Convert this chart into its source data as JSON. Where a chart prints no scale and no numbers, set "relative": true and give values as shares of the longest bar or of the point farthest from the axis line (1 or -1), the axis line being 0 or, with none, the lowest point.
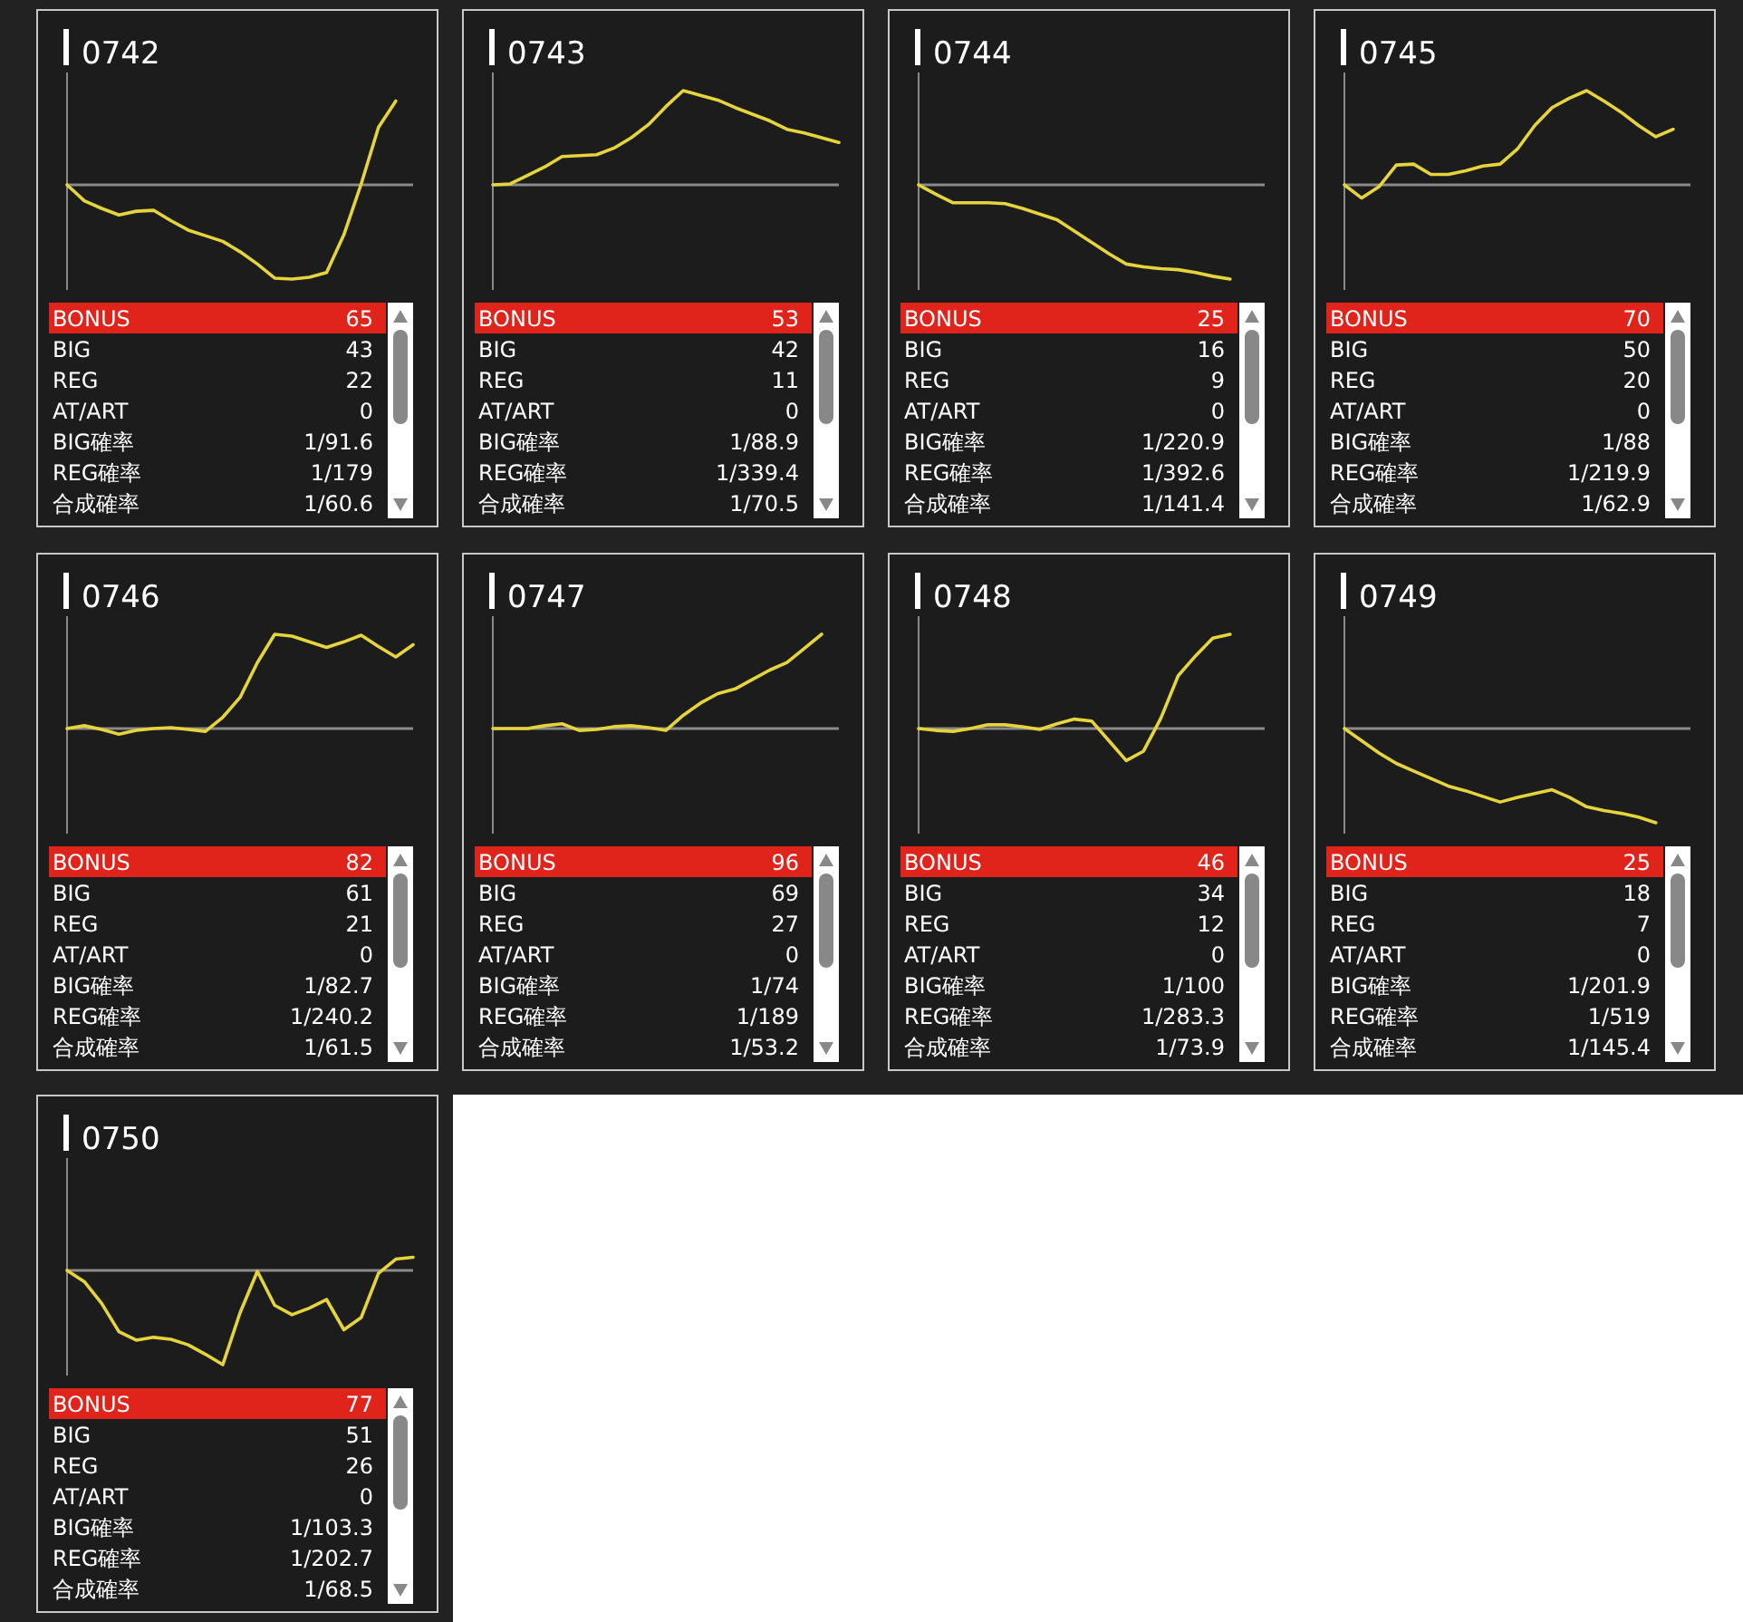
{
  "chart_data": [
    {
      "type": "line",
      "title": "0742",
      "relative": true,
      "color": "#e6d43c",
      "categories": [
        null,
        null,
        null,
        null,
        null,
        null,
        null,
        null,
        null,
        null,
        null,
        null,
        null,
        null,
        null,
        null,
        null,
        null,
        null,
        null,
        null
      ],
      "values": [
        0,
        -0.17,
        -0.25,
        -0.32,
        -0.28,
        -0.27,
        -0.38,
        -0.48,
        -0.54,
        -0.6,
        -0.71,
        -0.84,
        -0.99,
        -1,
        -0.98,
        -0.93,
        -0.53,
        0.01,
        0.61,
        0.89,
        null
      ],
      "annotations": [
        "BONUS",
        "65",
        "BIG",
        "43",
        "REG",
        "22",
        "AT/ART",
        "0",
        "BIG確率",
        "1/91.6",
        "REG確率",
        "1/179",
        "合成確率",
        "1/60.6"
      ]
    },
    {
      "type": "line",
      "title": "0743",
      "relative": true,
      "color": "#e6d43c",
      "categories": [
        null,
        null,
        null,
        null,
        null,
        null,
        null,
        null,
        null,
        null,
        null,
        null,
        null,
        null,
        null,
        null,
        null,
        null,
        null,
        null,
        null
      ],
      "values": [
        0,
        0.01,
        0.1,
        0.19,
        0.3,
        0.31,
        0.32,
        0.39,
        0.5,
        0.64,
        0.83,
        1,
        0.95,
        0.9,
        0.82,
        0.75,
        0.68,
        0.59,
        0.55,
        0.5,
        0.45
      ],
      "annotations": [
        "BONUS",
        "53",
        "BIG",
        "42",
        "REG",
        "11",
        "AT/ART",
        "0",
        "BIG確率",
        "1/88.9",
        "REG確率",
        "1/339.4",
        "合成確率",
        "1/70.5"
      ]
    },
    {
      "type": "line",
      "title": "0744",
      "relative": true,
      "color": "#e6d43c",
      "categories": [
        null,
        null,
        null,
        null,
        null,
        null,
        null,
        null,
        null,
        null,
        null,
        null,
        null,
        null,
        null,
        null,
        null,
        null,
        null,
        null,
        null
      ],
      "values": [
        0,
        -0.1,
        -0.19,
        -0.19,
        -0.19,
        -0.2,
        -0.25,
        -0.31,
        -0.37,
        -0.49,
        -0.61,
        -0.73,
        -0.84,
        -0.87,
        -0.89,
        -0.9,
        -0.93,
        -0.97,
        -1,
        null,
        null
      ],
      "annotations": [
        "BONUS",
        "25",
        "BIG",
        "16",
        "REG",
        "9",
        "AT/ART",
        "0",
        "BIG確率",
        "1/220.9",
        "REG確率",
        "1/392.6",
        "合成確率",
        "1/141.4"
      ]
    },
    {
      "type": "line",
      "title": "0745",
      "relative": true,
      "color": "#e6d43c",
      "categories": [
        null,
        null,
        null,
        null,
        null,
        null,
        null,
        null,
        null,
        null,
        null,
        null,
        null,
        null,
        null,
        null,
        null,
        null,
        null,
        null,
        null
      ],
      "values": [
        0,
        -0.14,
        -0.02,
        0.21,
        0.22,
        0.11,
        0.11,
        0.15,
        0.2,
        0.22,
        0.38,
        0.63,
        0.82,
        0.92,
        1,
        0.89,
        0.77,
        0.63,
        0.51,
        0.59,
        null
      ],
      "annotations": [
        "BONUS",
        "70",
        "BIG",
        "50",
        "REG",
        "20",
        "AT/ART",
        "0",
        "BIG確率",
        "1/88",
        "REG確率",
        "1/219.9",
        "合成確率",
        "1/62.9"
      ]
    },
    {
      "type": "line",
      "title": "0746",
      "relative": true,
      "color": "#e6d43c",
      "categories": [
        null,
        null,
        null,
        null,
        null,
        null,
        null,
        null,
        null,
        null,
        null,
        null,
        null,
        null,
        null,
        null,
        null,
        null,
        null,
        null,
        null
      ],
      "values": [
        0,
        0.03,
        -0.01,
        -0.06,
        -0.02,
        0,
        0.01,
        -0.01,
        -0.03,
        0.12,
        0.33,
        0.7,
        1,
        0.98,
        0.92,
        0.86,
        0.92,
        0.99,
        0.87,
        0.76,
        0.89
      ],
      "annotations": [
        "BONUS",
        "82",
        "BIG",
        "61",
        "REG",
        "21",
        "AT/ART",
        "0",
        "BIG確率",
        "1/82.7",
        "REG確率",
        "1/240.2",
        "合成確率",
        "1/61.5"
      ]
    },
    {
      "type": "line",
      "title": "0747",
      "relative": true,
      "color": "#e6d43c",
      "categories": [
        null,
        null,
        null,
        null,
        null,
        null,
        null,
        null,
        null,
        null,
        null,
        null,
        null,
        null,
        null,
        null,
        null,
        null,
        null,
        null,
        null
      ],
      "values": [
        0,
        0,
        0,
        0.03,
        0.05,
        -0.02,
        -0.01,
        0.02,
        0.03,
        0.01,
        -0.02,
        0.14,
        0.27,
        0.37,
        0.42,
        0.52,
        0.62,
        0.7,
        0.85,
        1,
        null
      ],
      "annotations": [
        "BONUS",
        "96",
        "BIG",
        "69",
        "REG",
        "27",
        "AT/ART",
        "0",
        "BIG確率",
        "1/74",
        "REG確率",
        "1/189",
        "合成確率",
        "1/53.2"
      ]
    },
    {
      "type": "line",
      "title": "0748",
      "relative": true,
      "color": "#e6d43c",
      "categories": [
        null,
        null,
        null,
        null,
        null,
        null,
        null,
        null,
        null,
        null,
        null,
        null,
        null,
        null,
        null,
        null,
        null,
        null,
        null,
        null,
        null
      ],
      "values": [
        0,
        -0.02,
        -0.03,
        0,
        0.04,
        0.04,
        0.02,
        -0.01,
        0.05,
        0.1,
        0.08,
        -0.13,
        -0.34,
        -0.24,
        0.11,
        0.56,
        0.77,
        0.96,
        1,
        null,
        null
      ],
      "annotations": [
        "BONUS",
        "46",
        "BIG",
        "34",
        "REG",
        "12",
        "AT/ART",
        "0",
        "BIG確率",
        "1/100",
        "REG確率",
        "1/283.3",
        "合成確率",
        "1/73.9"
      ]
    },
    {
      "type": "line",
      "title": "0749",
      "relative": true,
      "color": "#e6d43c",
      "categories": [
        null,
        null,
        null,
        null,
        null,
        null,
        null,
        null,
        null,
        null,
        null,
        null,
        null,
        null,
        null,
        null,
        null,
        null,
        null,
        null,
        null
      ],
      "values": [
        0,
        -0.13,
        -0.26,
        -0.37,
        -0.45,
        -0.53,
        -0.61,
        -0.66,
        -0.72,
        -0.78,
        -0.73,
        -0.69,
        -0.65,
        -0.73,
        -0.83,
        -0.87,
        -0.9,
        -0.94,
        -1,
        null,
        null
      ],
      "annotations": [
        "BONUS",
        "25",
        "BIG",
        "18",
        "REG",
        "7",
        "AT/ART",
        "0",
        "BIG確率",
        "1/201.9",
        "REG確率",
        "1/519",
        "合成確率",
        "1/145.4"
      ]
    },
    {
      "type": "line",
      "title": "0750",
      "relative": true,
      "color": "#e6d43c",
      "categories": [
        null,
        null,
        null,
        null,
        null,
        null,
        null,
        null,
        null,
        null,
        null,
        null,
        null,
        null,
        null,
        null,
        null,
        null,
        null,
        null,
        null
      ],
      "values": [
        0,
        -0.12,
        -0.35,
        -0.65,
        -0.74,
        -0.71,
        -0.73,
        -0.79,
        -0.89,
        -1,
        -0.45,
        -0.01,
        -0.37,
        -0.47,
        -0.4,
        -0.31,
        -0.63,
        -0.5,
        -0.03,
        0.12,
        0.14
      ],
      "annotations": [
        "BONUS",
        "77",
        "BIG",
        "51",
        "REG",
        "26",
        "AT/ART",
        "0",
        "BIG確率",
        "1/103.3",
        "REG確率",
        "1/202.7",
        "合成確率",
        "1/68.5"
      ]
    }
  ]
}
